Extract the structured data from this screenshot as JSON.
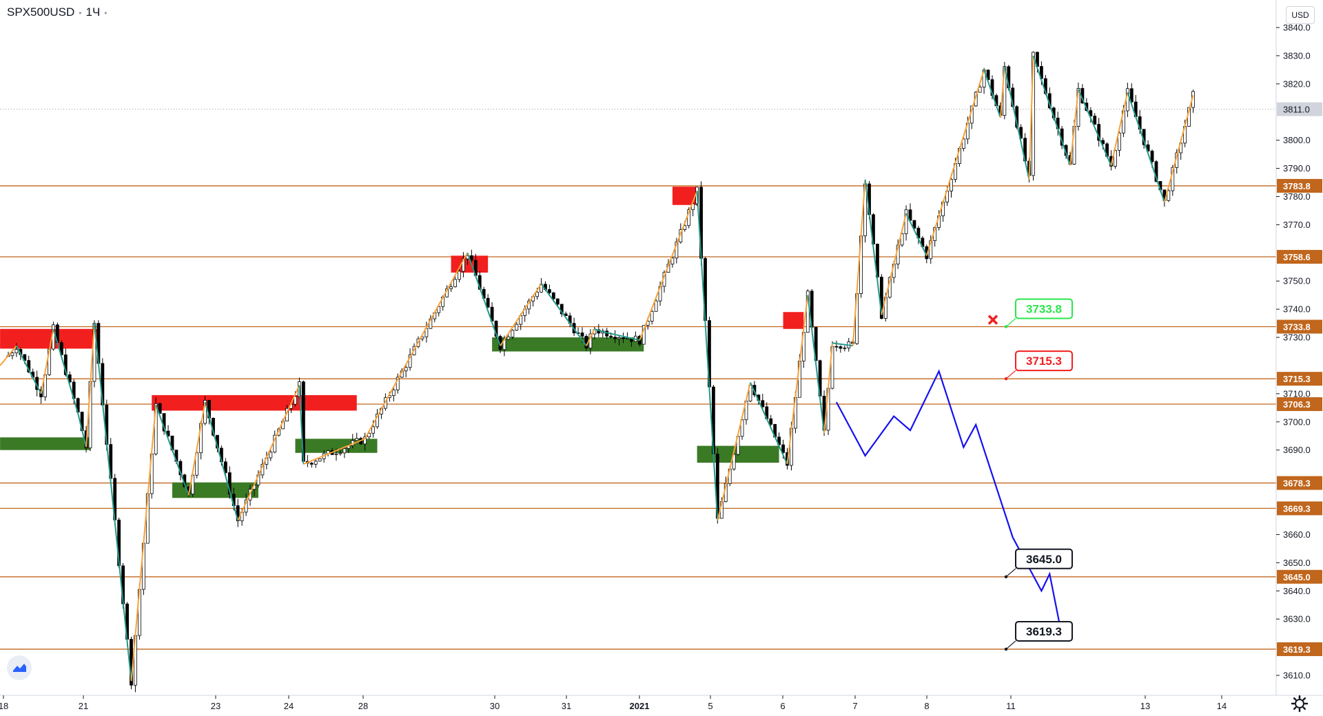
{
  "header": {
    "symbol": "SPX500USD",
    "interval": "1Ч"
  },
  "currency_button": "USD",
  "colors": {
    "level_line": "#c0661d",
    "level_badge": "#c0661d",
    "bull_zig": "#f7a23b",
    "bear_zig": "#23998a",
    "supply_zone": "#f21f1f",
    "demand_zone": "#3b7a25",
    "forecast": "#1410f2",
    "current_price_badge": "#d1d4dc",
    "callout_green": "#27e64b",
    "callout_red": "#f21f1f",
    "callout_black": "#131722"
  },
  "chart_data": {
    "type": "candlestick",
    "title": "",
    "ylim": [
      3605,
      3845
    ],
    "y_ticks": [
      "3840.0",
      "3830.0",
      "3820.0",
      "3800.0",
      "3790.0",
      "3780.0",
      "3770.0",
      "3750.0",
      "3740.0",
      "3730.0",
      "3710.0",
      "3700.0",
      "3690.0",
      "3660.0",
      "3650.0",
      "3640.0",
      "3630.0",
      "3610.0"
    ],
    "x_ticks": [
      "18",
      "21",
      "23",
      "24",
      "28",
      "30",
      "31",
      "2021",
      "5",
      "6",
      "7",
      "8",
      "11",
      "13",
      "14"
    ],
    "current_price": {
      "value": 3811.0,
      "label": "3811.0"
    },
    "horizontal_levels": [
      {
        "value": 3783.8,
        "label": "3783.8"
      },
      {
        "value": 3758.6,
        "label": "3758.6"
      },
      {
        "value": 3733.8,
        "label": "3733.8"
      },
      {
        "value": 3715.3,
        "label": "3715.3"
      },
      {
        "value": 3706.3,
        "label": "3706.3"
      },
      {
        "value": 3678.3,
        "label": "3678.3"
      },
      {
        "value": 3669.3,
        "label": "3669.3"
      },
      {
        "value": 3645.0,
        "label": "3645.0"
      },
      {
        "value": 3619.3,
        "label": "3619.3"
      }
    ],
    "callouts": [
      {
        "label": "3733.8",
        "value": 3733.8,
        "style": "green"
      },
      {
        "label": "3715.3",
        "value": 3715.3,
        "style": "red"
      },
      {
        "label": "3645.0",
        "value": 3645.0,
        "style": "black"
      },
      {
        "label": "3619.3",
        "value": 3619.3,
        "style": "black"
      }
    ],
    "supply_zones": [
      {
        "from_bar": -2,
        "to_bar": 22,
        "low": 3726,
        "high": 3733
      },
      {
        "from_bar": 35,
        "to_bar": 85,
        "low": 3704,
        "high": 3709.5
      },
      {
        "from_bar": 108,
        "to_bar": 117,
        "low": 3753,
        "high": 3759
      },
      {
        "from_bar": 162,
        "to_bar": 168,
        "low": 3777,
        "high": 3783.5
      },
      {
        "from_bar": 189,
        "to_bar": 194,
        "low": 3733,
        "high": 3739
      }
    ],
    "demand_zones": [
      {
        "from_bar": -2,
        "to_bar": 20,
        "low": 3690,
        "high": 3694.5
      },
      {
        "from_bar": 40,
        "to_bar": 61,
        "low": 3673,
        "high": 3678.5
      },
      {
        "from_bar": 70,
        "to_bar": 90,
        "low": 3689,
        "high": 3694
      },
      {
        "from_bar": 118,
        "to_bar": 155,
        "low": 3725,
        "high": 3730
      },
      {
        "from_bar": 168,
        "to_bar": 188,
        "low": 3685.5,
        "high": 3691.5
      }
    ],
    "zigzag": [
      [
        -2,
        3720
      ],
      [
        2,
        3727
      ],
      [
        8,
        3710
      ],
      [
        11,
        3733
      ],
      [
        17,
        3703
      ],
      [
        19,
        3691
      ],
      [
        21,
        3735
      ],
      [
        30,
        3608
      ],
      [
        36,
        3706
      ],
      [
        44,
        3674
      ],
      [
        48,
        3707
      ],
      [
        56,
        3665
      ],
      [
        71,
        3713
      ],
      [
        72,
        3685
      ],
      [
        87,
        3694
      ],
      [
        112,
        3760
      ],
      [
        120,
        3727
      ],
      [
        130,
        3749
      ],
      [
        141,
        3727
      ],
      [
        143,
        3733
      ],
      [
        145,
        3732
      ],
      [
        154,
        3729
      ],
      [
        168,
        3782
      ],
      [
        173,
        3665
      ],
      [
        181,
        3714
      ],
      [
        190,
        3685
      ],
      [
        195,
        3745
      ],
      [
        199,
        3696
      ],
      [
        201,
        3728
      ],
      [
        206,
        3727
      ],
      [
        209,
        3786
      ],
      [
        213,
        3738
      ],
      [
        219,
        3774
      ],
      [
        224,
        3759
      ],
      [
        238,
        3825
      ],
      [
        242,
        3808
      ],
      [
        243,
        3826
      ],
      [
        249,
        3786
      ],
      [
        250,
        3830
      ],
      [
        259,
        3791
      ],
      [
        261,
        3818
      ],
      [
        269,
        3791
      ],
      [
        273,
        3817
      ],
      [
        282,
        3778
      ],
      [
        289,
        3816
      ]
    ],
    "forecast_path": [
      [
        202,
        3707
      ],
      [
        209,
        3688
      ],
      [
        216,
        3702
      ],
      [
        220,
        3697
      ],
      [
        227,
        3718
      ],
      [
        233,
        3691
      ],
      [
        236,
        3699
      ],
      [
        245,
        3659
      ],
      [
        252,
        3640
      ],
      [
        254,
        3646
      ],
      [
        257,
        3624
      ]
    ],
    "candles": {
      "count": 292,
      "generator_seed": 7,
      "note_anchors": "closes follow the zigzag path"
    }
  }
}
